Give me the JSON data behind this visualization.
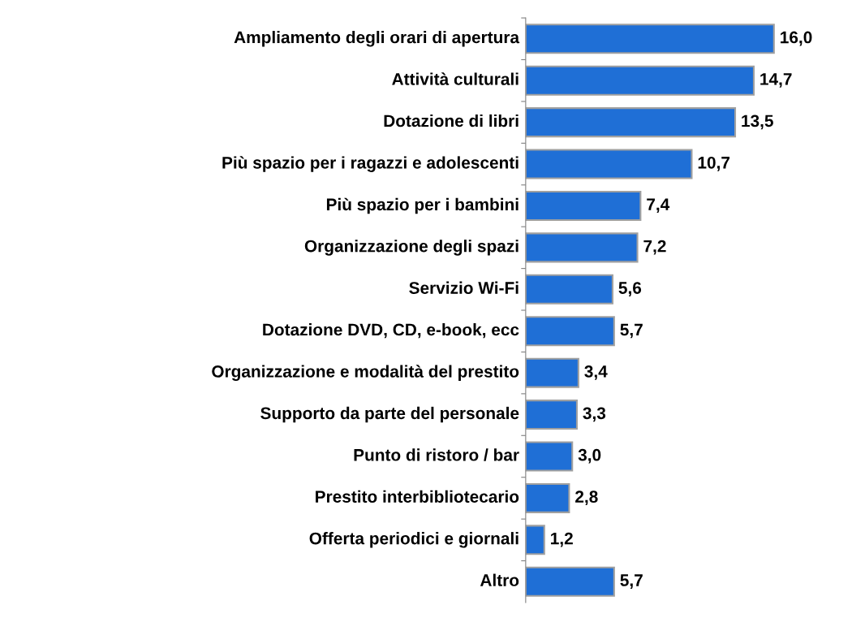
{
  "chart_data": {
    "type": "bar",
    "orientation": "horizontal",
    "categories": [
      "Ampliamento degli orari di apertura",
      "Attività culturali",
      "Dotazione di libri",
      "Più spazio per i ragazzi e adolescenti",
      "Più spazio per i bambini",
      "Organizzazione degli spazi",
      "Servizio Wi-Fi",
      "Dotazione DVD, CD, e-book, ecc",
      "Organizzazione e modalità del prestito",
      "Supporto da parte del personale",
      "Punto di ristoro / bar",
      "Prestito interbibliotecario",
      "Offerta periodici e giornali",
      "Altro"
    ],
    "values": [
      16.0,
      14.7,
      13.5,
      10.7,
      7.4,
      7.2,
      5.6,
      5.7,
      3.4,
      3.3,
      3.0,
      2.8,
      1.2,
      5.7
    ],
    "value_labels": [
      "16,0",
      "14,7",
      "13,5",
      "10,7",
      "7,4",
      "7,2",
      "5,6",
      "5,7",
      "3,4",
      "3,3",
      "3,0",
      "2,8",
      "1,2",
      "5,7"
    ],
    "color": "#1f6fd6",
    "grid": false,
    "legend": false
  }
}
